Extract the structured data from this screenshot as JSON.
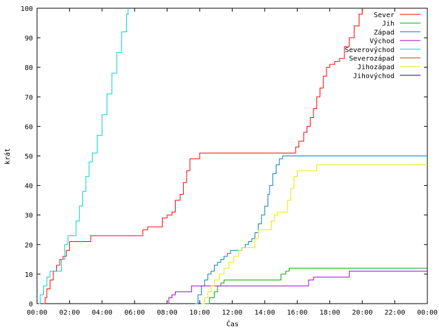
{
  "chart_data": {
    "type": "line",
    "xlabel": "Čas",
    "ylabel": "krát",
    "xlim": [
      0,
      24
    ],
    "ylim": [
      0,
      100
    ],
    "x_ticks": [
      {
        "value": 0,
        "label": "00:00"
      },
      {
        "value": 2,
        "label": "02:00"
      },
      {
        "value": 4,
        "label": "04:00"
      },
      {
        "value": 6,
        "label": "06:00"
      },
      {
        "value": 8,
        "label": "08:00"
      },
      {
        "value": 10,
        "label": "10:00"
      },
      {
        "value": 12,
        "label": "12:00"
      },
      {
        "value": 14,
        "label": "14:00"
      },
      {
        "value": 16,
        "label": "16:00"
      },
      {
        "value": 18,
        "label": "18:00"
      },
      {
        "value": 20,
        "label": "20:00"
      },
      {
        "value": 22,
        "label": "22:00"
      },
      {
        "value": 24,
        "label": "00:00"
      }
    ],
    "y_ticks": [
      0,
      10,
      20,
      30,
      40,
      50,
      60,
      70,
      80,
      90,
      100
    ],
    "grid": false,
    "legend_position": "top-right",
    "series": [
      {
        "name": "Sever",
        "color": "#ff0000",
        "points": [
          [
            0.4,
            0
          ],
          [
            0.5,
            2
          ],
          [
            0.6,
            5
          ],
          [
            0.8,
            8
          ],
          [
            1.0,
            11
          ],
          [
            1.2,
            13
          ],
          [
            1.4,
            15
          ],
          [
            1.6,
            16
          ],
          [
            1.8,
            18
          ],
          [
            2.0,
            21
          ],
          [
            3.2,
            21
          ],
          [
            3.3,
            23
          ],
          [
            6.3,
            23
          ],
          [
            6.5,
            25
          ],
          [
            6.8,
            26
          ],
          [
            7.5,
            26
          ],
          [
            7.7,
            29
          ],
          [
            8.0,
            30
          ],
          [
            8.3,
            31
          ],
          [
            8.5,
            35
          ],
          [
            8.8,
            37
          ],
          [
            9.0,
            41
          ],
          [
            9.2,
            45
          ],
          [
            9.4,
            49
          ],
          [
            9.8,
            49
          ],
          [
            10.0,
            51
          ],
          [
            15.8,
            51
          ],
          [
            15.9,
            53
          ],
          [
            16.1,
            55
          ],
          [
            16.4,
            58
          ],
          [
            16.6,
            60
          ],
          [
            16.8,
            63
          ],
          [
            17.0,
            66
          ],
          [
            17.2,
            70
          ],
          [
            17.4,
            73
          ],
          [
            17.6,
            77
          ],
          [
            17.8,
            80
          ],
          [
            18.0,
            81
          ],
          [
            18.3,
            82
          ],
          [
            18.6,
            83
          ],
          [
            18.9,
            87
          ],
          [
            19.2,
            90
          ],
          [
            19.5,
            94
          ],
          [
            19.8,
            98
          ],
          [
            20.0,
            100
          ]
        ]
      },
      {
        "name": "Jih",
        "color": "#00aa00",
        "points": [
          [
            10.3,
            0
          ],
          [
            10.6,
            2
          ],
          [
            10.9,
            4
          ],
          [
            11.1,
            6
          ],
          [
            11.3,
            7
          ],
          [
            11.5,
            8
          ],
          [
            14.8,
            8
          ],
          [
            15.0,
            10
          ],
          [
            15.3,
            11
          ],
          [
            15.5,
            12
          ],
          [
            24,
            12
          ]
        ]
      },
      {
        "name": "Západ",
        "color": "#0080c0",
        "points": [
          [
            9.7,
            0
          ],
          [
            9.9,
            3
          ],
          [
            10.1,
            6
          ],
          [
            10.3,
            8
          ],
          [
            10.5,
            10
          ],
          [
            10.7,
            11
          ],
          [
            10.9,
            13
          ],
          [
            11.1,
            14
          ],
          [
            11.3,
            15
          ],
          [
            11.5,
            16
          ],
          [
            11.7,
            17
          ],
          [
            11.9,
            18
          ],
          [
            12.4,
            18
          ],
          [
            12.6,
            19
          ],
          [
            12.8,
            20
          ],
          [
            13.0,
            21
          ],
          [
            13.2,
            22
          ],
          [
            13.4,
            24
          ],
          [
            13.6,
            27
          ],
          [
            13.8,
            30
          ],
          [
            14.0,
            33
          ],
          [
            14.2,
            37
          ],
          [
            14.3,
            40
          ],
          [
            14.5,
            44
          ],
          [
            14.7,
            47
          ],
          [
            14.9,
            49
          ],
          [
            15.1,
            50
          ],
          [
            24,
            50
          ]
        ]
      },
      {
        "name": "Východ",
        "color": "#a000d0",
        "points": [
          [
            8.0,
            0
          ],
          [
            8.1,
            2
          ],
          [
            8.3,
            3
          ],
          [
            8.5,
            4
          ],
          [
            9.3,
            4
          ],
          [
            9.5,
            6
          ],
          [
            16.5,
            6
          ],
          [
            16.7,
            8
          ],
          [
            17.0,
            9
          ],
          [
            19.0,
            9
          ],
          [
            19.2,
            11
          ],
          [
            24,
            11
          ]
        ]
      },
      {
        "name": "Severovýchod",
        "color": "#00d0d0",
        "points": [
          [
            0.1,
            0
          ],
          [
            0.2,
            3
          ],
          [
            0.4,
            6
          ],
          [
            0.6,
            9
          ],
          [
            0.8,
            11
          ],
          [
            1.3,
            11
          ],
          [
            1.5,
            15
          ],
          [
            1.7,
            20
          ],
          [
            1.9,
            23
          ],
          [
            2.1,
            23
          ],
          [
            2.4,
            28
          ],
          [
            2.6,
            33
          ],
          [
            2.8,
            38
          ],
          [
            3.0,
            43
          ],
          [
            3.2,
            48
          ],
          [
            3.4,
            51
          ],
          [
            3.7,
            57
          ],
          [
            4.0,
            64
          ],
          [
            4.3,
            71
          ],
          [
            4.6,
            78
          ],
          [
            4.9,
            85
          ],
          [
            5.2,
            92
          ],
          [
            5.5,
            98
          ],
          [
            5.6,
            100
          ]
        ]
      },
      {
        "name": "Severozápad",
        "color": "#c05000",
        "points": []
      },
      {
        "name": "Jihozápad",
        "color": "#e8e800",
        "points": [
          [
            10.1,
            0
          ],
          [
            10.3,
            2
          ],
          [
            10.5,
            4
          ],
          [
            10.7,
            6
          ],
          [
            10.9,
            8
          ],
          [
            11.2,
            10
          ],
          [
            11.5,
            12
          ],
          [
            11.8,
            14
          ],
          [
            12.1,
            16
          ],
          [
            12.4,
            18
          ],
          [
            12.6,
            19
          ],
          [
            13.2,
            19
          ],
          [
            13.4,
            22
          ],
          [
            13.6,
            25
          ],
          [
            14.2,
            25
          ],
          [
            14.4,
            28
          ],
          [
            14.6,
            30
          ],
          [
            14.8,
            31
          ],
          [
            15.2,
            31
          ],
          [
            15.4,
            35
          ],
          [
            15.6,
            39
          ],
          [
            15.8,
            43
          ],
          [
            16.0,
            45
          ],
          [
            17.0,
            45
          ],
          [
            17.2,
            47
          ],
          [
            24,
            47
          ]
        ]
      },
      {
        "name": "Jihovýchod",
        "color": "#000080",
        "points": []
      }
    ]
  }
}
